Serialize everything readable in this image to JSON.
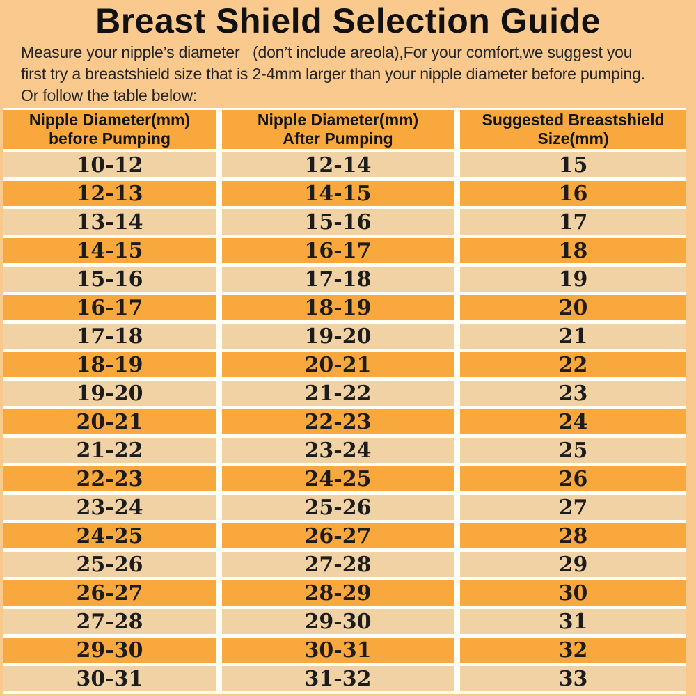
{
  "page": {
    "title": "Breast Shield Selection Guide",
    "intro_lines": [
      "Measure your nipple’s diameter   (don’t include areola),For your comfort,we suggest you",
      "first try a breastshield size that is 2-4mm larger than your nipple diameter before pumping.",
      "Or follow the table below:"
    ]
  },
  "colors": {
    "page_background": "#F9C98E",
    "row_orange": "#F9A83E",
    "row_tan": "#F0D2A4",
    "grid_line": "#FFFEF6",
    "text": "#1a1a1a"
  },
  "table": {
    "headers": [
      {
        "line1": "Nipple Diameter(mm)",
        "line2": "before Pumping"
      },
      {
        "line1": "Nipple Diameter(mm)",
        "line2": "After Pumping"
      },
      {
        "line1": "Suggested Breastshield",
        "line2": "Size(mm)"
      }
    ]
  },
  "chart_data": {
    "type": "table",
    "title": "Breast Shield Selection Guide",
    "columns": [
      "Nipple Diameter(mm) before Pumping",
      "Nipple Diameter(mm) After Pumping",
      "Suggested Breastshield Size(mm)"
    ],
    "rows": [
      [
        "10-12",
        "12-14",
        "15"
      ],
      [
        "12-13",
        "14-15",
        "16"
      ],
      [
        "13-14",
        "15-16",
        "17"
      ],
      [
        "14-15",
        "16-17",
        "18"
      ],
      [
        "15-16",
        "17-18",
        "19"
      ],
      [
        "16-17",
        "18-19",
        "20"
      ],
      [
        "17-18",
        "19-20",
        "21"
      ],
      [
        "18-19",
        "20-21",
        "22"
      ],
      [
        "19-20",
        "21-22",
        "23"
      ],
      [
        "20-21",
        "22-23",
        "24"
      ],
      [
        "21-22",
        "23-24",
        "25"
      ],
      [
        "22-23",
        "24-25",
        "26"
      ],
      [
        "23-24",
        "25-26",
        "27"
      ],
      [
        "24-25",
        "26-27",
        "28"
      ],
      [
        "25-26",
        "27-28",
        "29"
      ],
      [
        "26-27",
        "28-29",
        "30"
      ],
      [
        "27-28",
        "29-30",
        "31"
      ],
      [
        "29-30",
        "30-31",
        "32"
      ],
      [
        "30-31",
        "31-32",
        "33"
      ]
    ]
  }
}
